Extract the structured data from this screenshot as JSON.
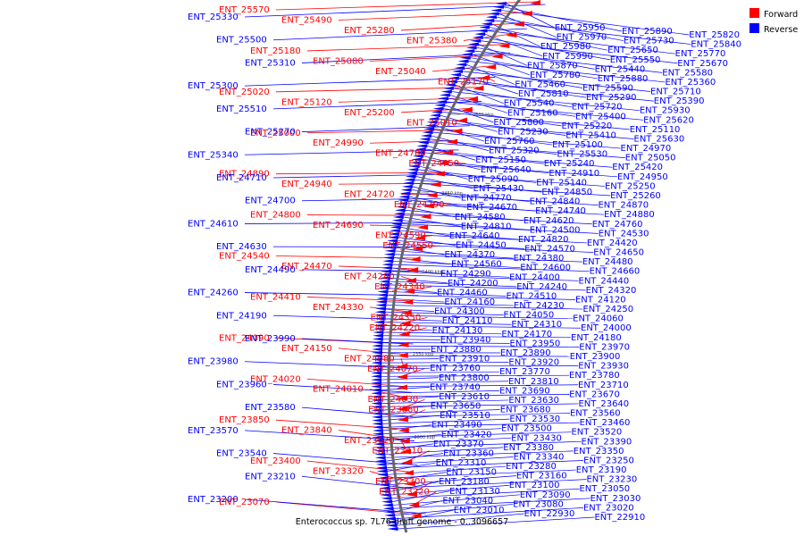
{
  "caption": "Enterococcus sp. 7L76 draft genome - 0..3096657",
  "colors": {
    "forward": "#ff0000",
    "reverse": "#0000ff",
    "backbone": "#666666"
  },
  "legend": [
    {
      "name": "Forward",
      "color": "#ff0000"
    },
    {
      "name": "Reverse",
      "color": "#0000ff"
    }
  ],
  "scale_ticks": [
    "2500 kbp",
    "2450 kbp",
    "2400 kbp",
    "2350 kbp",
    "2300 kbp"
  ],
  "forward_genes": [
    "ENT_25570",
    "ENT_25490",
    "ENT_25280",
    "ENT_25380",
    "ENT_25180",
    "ENT_25080",
    "ENT_25040",
    "ENT_25170",
    "ENT_25020",
    "ENT_25120",
    "ENT_25200",
    "ENT_25010",
    "ENT_25000",
    "ENT_24990",
    "ENT_24780",
    "ENT_24750",
    "ENT_24890",
    "ENT_24940",
    "ENT_24720",
    "ENT_24790",
    "ENT_24800",
    "ENT_24690",
    "ENT_24590",
    "ENT_24550",
    "ENT_24540",
    "ENT_24470",
    "ENT_24280",
    "ENT_24340",
    "ENT_24410",
    "ENT_24330",
    "ENT_24350",
    "ENT_24220",
    "ENT_24090",
    "ENT_24150",
    "ENT_24080",
    "ENT_24070",
    "ENT_24020",
    "ENT_24010",
    "ENT_24030",
    "ENT_23860",
    "ENT_23850",
    "ENT_23840",
    "ENT_23620",
    "ENT_23410",
    "ENT_23400",
    "ENT_23320",
    "ENT_23300",
    "ENT_23220",
    "ENT_23070"
  ],
  "reverse_left_genes": [
    "ENT_25330",
    "ENT_25500",
    "ENT_25310",
    "ENT_25300",
    "ENT_25510",
    "ENT_25270",
    "ENT_25340",
    "ENT_24710",
    "ENT_24700",
    "ENT_24610",
    "ENT_24630",
    "ENT_24490",
    "ENT_24260",
    "ENT_24190",
    "ENT_23990",
    "ENT_23980",
    "ENT_23960",
    "ENT_23580",
    "ENT_23570",
    "ENT_23540",
    "ENT_23210",
    "ENT_23200"
  ],
  "reverse_right_genes": [
    "ENT_25950",
    "ENT_25890",
    "ENT_25820",
    "ENT_25970",
    "ENT_25730",
    "ENT_25840",
    "ENT_25980",
    "ENT_25650",
    "ENT_25770",
    "ENT_25990",
    "ENT_25550",
    "ENT_25670",
    "ENT_25870",
    "ENT_25440",
    "ENT_25580",
    "ENT_25780",
    "ENT_25880",
    "ENT_25360",
    "ENT_25460",
    "ENT_25590",
    "ENT_25710",
    "ENT_25810",
    "ENT_25290",
    "ENT_25390",
    "ENT_25540",
    "ENT_25720",
    "ENT_25930",
    "ENT_25160",
    "ENT_25400",
    "ENT_25620",
    "ENT_25800",
    "ENT_25220",
    "ENT_25110",
    "ENT_25230",
    "ENT_25410",
    "ENT_25630",
    "ENT_25760",
    "ENT_25100",
    "ENT_24970",
    "ENT_25320",
    "ENT_25530",
    "ENT_25050",
    "ENT_25150",
    "ENT_25240",
    "ENT_25420",
    "ENT_25640",
    "ENT_24910",
    "ENT_24950",
    "ENT_25090",
    "ENT_25140",
    "ENT_25250",
    "ENT_25430",
    "ENT_24850",
    "ENT_25260",
    "ENT_24770",
    "ENT_24840",
    "ENT_24870",
    "ENT_24670",
    "ENT_24740",
    "ENT_24880",
    "ENT_24580",
    "ENT_24620",
    "ENT_24760",
    "ENT_24810",
    "ENT_24500",
    "ENT_24530",
    "ENT_24640",
    "ENT_24820",
    "ENT_24420",
    "ENT_24450",
    "ENT_24570",
    "ENT_24650",
    "ENT_24370",
    "ENT_24380",
    "ENT_24480",
    "ENT_24560",
    "ENT_24600",
    "ENT_24660",
    "ENT_24290",
    "ENT_24400",
    "ENT_24440",
    "ENT_24200",
    "ENT_24240",
    "ENT_24320",
    "ENT_24460",
    "ENT_24510",
    "ENT_24120",
    "ENT_24160",
    "ENT_24230",
    "ENT_24250",
    "ENT_24300",
    "ENT_24050",
    "ENT_24060",
    "ENT_24110",
    "ENT_24310",
    "ENT_24000",
    "ENT_24130",
    "ENT_24170",
    "ENT_24180",
    "ENT_23940",
    "ENT_23950",
    "ENT_23970",
    "ENT_23880",
    "ENT_23890",
    "ENT_23900",
    "ENT_23910",
    "ENT_23920",
    "ENT_23930",
    "ENT_23760",
    "ENT_23770",
    "ENT_23780",
    "ENT_23800",
    "ENT_23810",
    "ENT_23710",
    "ENT_23740",
    "ENT_23690",
    "ENT_23670",
    "ENT_23610",
    "ENT_23630",
    "ENT_23640",
    "ENT_23650",
    "ENT_23680",
    "ENT_23560",
    "ENT_23510",
    "ENT_23530",
    "ENT_23460",
    "ENT_23490",
    "ENT_23500",
    "ENT_23520",
    "ENT_23420",
    "ENT_23430",
    "ENT_23390",
    "ENT_23370",
    "ENT_23380",
    "ENT_23350",
    "ENT_23360",
    "ENT_23340",
    "ENT_23250",
    "ENT_23310",
    "ENT_23280",
    "ENT_23190",
    "ENT_23150",
    "ENT_23160",
    "ENT_23230",
    "ENT_23180",
    "ENT_23100",
    "ENT_23050",
    "ENT_23130",
    "ENT_23090",
    "ENT_23030",
    "ENT_23040",
    "ENT_23080",
    "ENT_23020",
    "ENT_23010",
    "ENT_22930",
    "ENT_22910"
  ]
}
